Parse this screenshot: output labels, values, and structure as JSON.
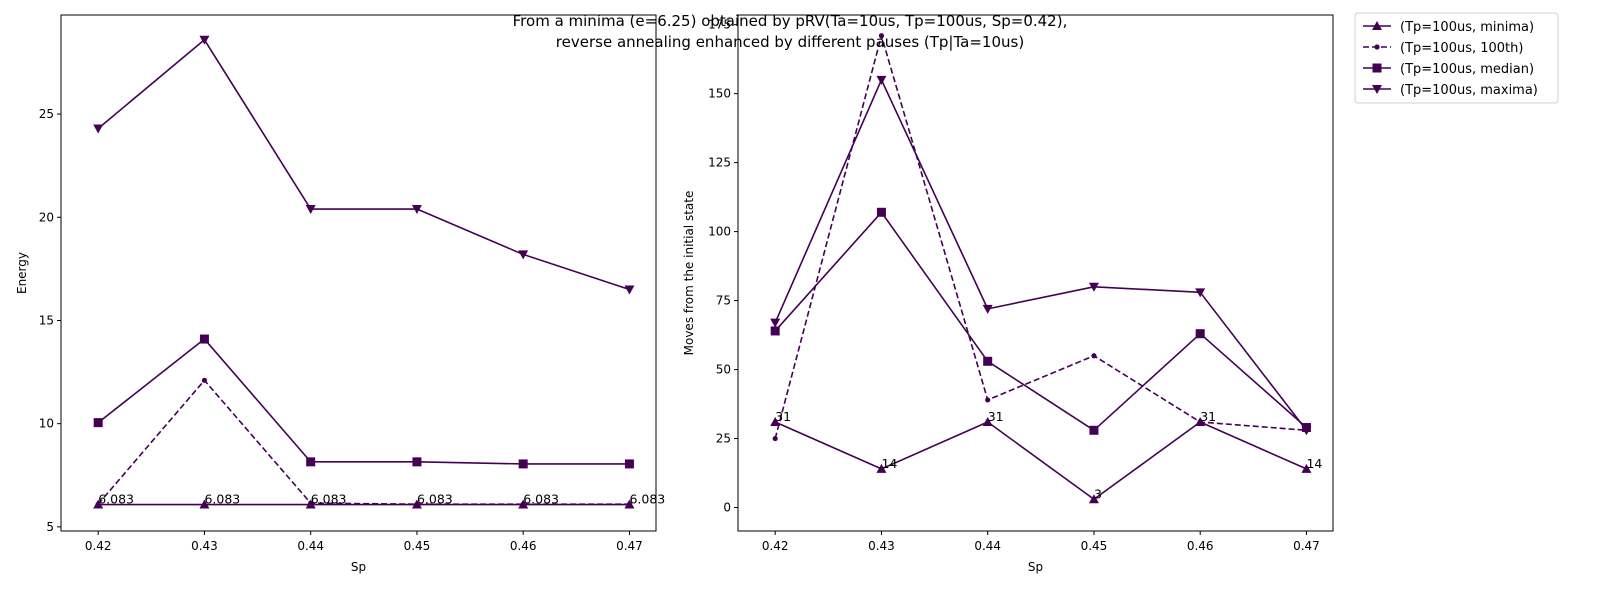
{
  "figure": {
    "title_lines": [
      "From a minima (e=6.25) obtained by pRV(Ta=10us, Tp=100us, Sp=0.42),",
      "reverse annealing enhanced by different pauses (Tp|Ta=10us)"
    ]
  },
  "colors": {
    "series": "#440154",
    "axis": "#000000",
    "background": "#ffffff"
  },
  "legend": {
    "placement": "outside-top-right",
    "entries": [
      {
        "label": "(Tp=100us, minima)",
        "marker": "triangle-up",
        "linestyle": "solid"
      },
      {
        "label": "(Tp=100us, 100th)",
        "marker": "dot",
        "linestyle": "dashed"
      },
      {
        "label": "(Tp=100us, median)",
        "marker": "square",
        "linestyle": "solid"
      },
      {
        "label": "(Tp=100us, maxima)",
        "marker": "triangle-down",
        "linestyle": "solid"
      }
    ]
  },
  "chart_data": [
    {
      "type": "line",
      "xlabel": "Sp",
      "ylabel": "Energy",
      "x": [
        0.42,
        0.43,
        0.44,
        0.45,
        0.46,
        0.47
      ],
      "x_tick_labels": [
        "0.42",
        "0.43",
        "0.44",
        "0.45",
        "0.46",
        "0.47"
      ],
      "xlim": [
        0.4165,
        0.4725
      ],
      "ylim": [
        4.8,
        29.8
      ],
      "y_ticks": [
        5,
        10,
        15,
        20,
        25
      ],
      "y_tick_labels": [
        "5",
        "10",
        "15",
        "20",
        "25"
      ],
      "grid": false,
      "series": [
        {
          "name": "(Tp=100us, minima)",
          "marker": "triangle-up",
          "linestyle": "solid",
          "values": [
            6.083,
            6.083,
            6.083,
            6.083,
            6.083,
            6.083
          ]
        },
        {
          "name": "(Tp=100us, 100th)",
          "marker": "dot",
          "linestyle": "dashed",
          "values": [
            6.1,
            12.1,
            6.15,
            6.1,
            6.1,
            6.1
          ]
        },
        {
          "name": "(Tp=100us, median)",
          "marker": "square",
          "linestyle": "solid",
          "values": [
            10.05,
            14.1,
            8.15,
            8.15,
            8.05,
            8.05
          ]
        },
        {
          "name": "(Tp=100us, maxima)",
          "marker": "triangle-down",
          "linestyle": "solid",
          "values": [
            24.3,
            28.6,
            20.4,
            20.4,
            18.2,
            16.5
          ]
        }
      ],
      "annotations": [
        {
          "x": 0.42,
          "y": 6.083,
          "text": "6.083"
        },
        {
          "x": 0.43,
          "y": 6.083,
          "text": "6.083"
        },
        {
          "x": 0.44,
          "y": 6.083,
          "text": "6.083"
        },
        {
          "x": 0.45,
          "y": 6.083,
          "text": "6.083"
        },
        {
          "x": 0.46,
          "y": 6.083,
          "text": "6.083"
        },
        {
          "x": 0.47,
          "y": 6.083,
          "text": "6.083"
        }
      ]
    },
    {
      "type": "line",
      "xlabel": "Sp",
      "ylabel": "Moves from the initial state",
      "x": [
        0.42,
        0.43,
        0.44,
        0.45,
        0.46,
        0.47
      ],
      "x_tick_labels": [
        "0.42",
        "0.43",
        "0.44",
        "0.45",
        "0.46",
        "0.47"
      ],
      "xlim": [
        0.4165,
        0.4725
      ],
      "ylim": [
        -8.5,
        178.5
      ],
      "y_ticks": [
        0,
        25,
        50,
        75,
        100,
        125,
        150,
        175
      ],
      "y_tick_labels": [
        "0",
        "25",
        "50",
        "75",
        "100",
        "125",
        "150",
        "175"
      ],
      "grid": false,
      "series": [
        {
          "name": "(Tp=100us, minima)",
          "marker": "triangle-up",
          "linestyle": "solid",
          "values": [
            31,
            14,
            31,
            3,
            31,
            14
          ]
        },
        {
          "name": "(Tp=100us, 100th)",
          "marker": "dot",
          "linestyle": "dashed",
          "values": [
            25,
            171,
            39,
            55,
            31,
            28
          ]
        },
        {
          "name": "(Tp=100us, median)",
          "marker": "square",
          "linestyle": "solid",
          "values": [
            64,
            107,
            53,
            28,
            63,
            29
          ]
        },
        {
          "name": "(Tp=100us, maxima)",
          "marker": "triangle-down",
          "linestyle": "solid",
          "values": [
            67,
            155,
            72,
            80,
            78,
            28
          ]
        }
      ],
      "annotations": [
        {
          "x": 0.42,
          "y": 31,
          "text": "31"
        },
        {
          "x": 0.43,
          "y": 14,
          "text": "14"
        },
        {
          "x": 0.44,
          "y": 31,
          "text": "31"
        },
        {
          "x": 0.45,
          "y": 3,
          "text": "3"
        },
        {
          "x": 0.46,
          "y": 31,
          "text": "31"
        },
        {
          "x": 0.47,
          "y": 14,
          "text": "14"
        }
      ]
    }
  ]
}
